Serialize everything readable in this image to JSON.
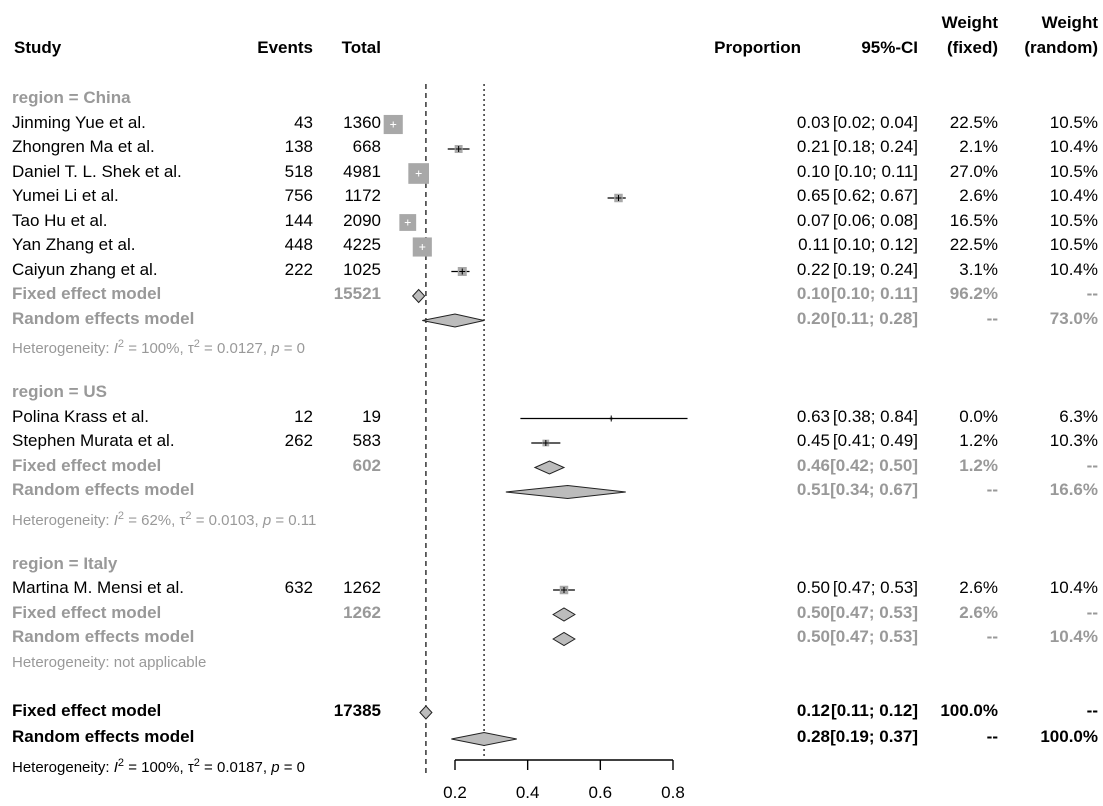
{
  "header": {
    "study": "Study",
    "events": "Events",
    "total": "Total",
    "proportion": "Proportion",
    "ci": "95%-CI",
    "weight_fixed_top": "Weight",
    "weight_fixed_bottom": "(fixed)",
    "weight_random_top": "Weight",
    "weight_random_bottom": "(random)"
  },
  "rows": [
    {
      "kind": "group",
      "label": "region = China"
    },
    {
      "kind": "study",
      "study": "Jinming Yue et al.",
      "events": "43",
      "total": "1360",
      "prop": "0.03",
      "ci": "[0.02; 0.04]",
      "wf": "22.5%",
      "wr": "10.5%",
      "est": 0.03,
      "lo": 0.02,
      "hi": 0.04,
      "w": 22.5
    },
    {
      "kind": "study",
      "study": "Zhongren Ma et al.",
      "events": "138",
      "total": "668",
      "prop": "0.21",
      "ci": "[0.18; 0.24]",
      "wf": "2.1%",
      "wr": "10.4%",
      "est": 0.21,
      "lo": 0.18,
      "hi": 0.24,
      "w": 2.1
    },
    {
      "kind": "study",
      "study": "Daniel T. L. Shek et al.",
      "events": "518",
      "total": "4981",
      "prop": "0.10",
      "ci": "[0.10; 0.11]",
      "wf": "27.0%",
      "wr": "10.5%",
      "est": 0.1,
      "lo": 0.1,
      "hi": 0.11,
      "w": 27.0
    },
    {
      "kind": "study",
      "study": "Yumei Li et al.",
      "events": "756",
      "total": "1172",
      "prop": "0.65",
      "ci": "[0.62; 0.67]",
      "wf": "2.6%",
      "wr": "10.4%",
      "est": 0.65,
      "lo": 0.62,
      "hi": 0.67,
      "w": 2.6
    },
    {
      "kind": "study",
      "study": "Tao Hu et al.",
      "events": "144",
      "total": "2090",
      "prop": "0.07",
      "ci": "[0.06; 0.08]",
      "wf": "16.5%",
      "wr": "10.5%",
      "est": 0.07,
      "lo": 0.06,
      "hi": 0.08,
      "w": 16.5
    },
    {
      "kind": "study",
      "study": "Yan Zhang et al.",
      "events": "448",
      "total": "4225",
      "prop": "0.11",
      "ci": "[0.10; 0.12]",
      "wf": "22.5%",
      "wr": "10.5%",
      "est": 0.11,
      "lo": 0.1,
      "hi": 0.12,
      "w": 22.5
    },
    {
      "kind": "study",
      "study": "Caiyun zhang et al.",
      "events": "222",
      "total": "1025",
      "prop": "0.22",
      "ci": "[0.19; 0.24]",
      "wf": "3.1%",
      "wr": "10.4%",
      "est": 0.22,
      "lo": 0.19,
      "hi": 0.24,
      "w": 3.1
    },
    {
      "kind": "fixed",
      "study": "Fixed effect model",
      "events": "",
      "total": "15521",
      "prop": "0.10",
      "ci": "[0.10; 0.11]",
      "wf": "96.2%",
      "wr": "--",
      "est": 0.1,
      "lo": 0.1,
      "hi": 0.11
    },
    {
      "kind": "random",
      "study": "Random effects model",
      "events": "",
      "total": "",
      "prop": "0.20",
      "ci": "[0.11; 0.28]",
      "wf": "--",
      "wr": "73.0%",
      "est": 0.2,
      "lo": 0.11,
      "hi": 0.28
    },
    {
      "kind": "het",
      "pre": "Heterogeneity: ",
      "I": "I",
      "mid": " = 100%, ",
      "tau": "τ",
      "post": " = 0.0127, ",
      "p": "p",
      "pval": " = 0"
    },
    {
      "kind": "blank"
    },
    {
      "kind": "group",
      "label": "region = US"
    },
    {
      "kind": "study",
      "study": "Polina Krass et al.",
      "events": "12",
      "total": "19",
      "prop": "0.63",
      "ci": "[0.38; 0.84]",
      "wf": "0.0%",
      "wr": "6.3%",
      "est": 0.63,
      "lo": 0.38,
      "hi": 0.84,
      "w": 0.0
    },
    {
      "kind": "study",
      "study": "Stephen Murata et al.",
      "events": "262",
      "total": "583",
      "prop": "0.45",
      "ci": "[0.41; 0.49]",
      "wf": "1.2%",
      "wr": "10.3%",
      "est": 0.45,
      "lo": 0.41,
      "hi": 0.49,
      "w": 1.2
    },
    {
      "kind": "fixed",
      "study": "Fixed effect model",
      "events": "",
      "total": "602",
      "prop": "0.46",
      "ci": "[0.42; 0.50]",
      "wf": "1.2%",
      "wr": "--",
      "est": 0.46,
      "lo": 0.42,
      "hi": 0.5
    },
    {
      "kind": "random",
      "study": "Random effects model",
      "events": "",
      "total": "",
      "prop": "0.51",
      "ci": "[0.34; 0.67]",
      "wf": "--",
      "wr": "16.6%",
      "est": 0.51,
      "lo": 0.34,
      "hi": 0.67
    },
    {
      "kind": "het",
      "pre": "Heterogeneity: ",
      "I": "I",
      "mid": " = 62%, ",
      "tau": "τ",
      "post": " = 0.0103, ",
      "p": "p",
      "pval": " = 0.11"
    },
    {
      "kind": "blank"
    },
    {
      "kind": "group",
      "label": "region = Italy"
    },
    {
      "kind": "study",
      "study": "Martina M. Mensi et al.",
      "events": "632",
      "total": "1262",
      "prop": "0.50",
      "ci": "[0.47; 0.53]",
      "wf": "2.6%",
      "wr": "10.4%",
      "est": 0.5,
      "lo": 0.47,
      "hi": 0.53,
      "w": 2.6
    },
    {
      "kind": "fixed",
      "study": "Fixed effect model",
      "events": "",
      "total": "1262",
      "prop": "0.50",
      "ci": "[0.47; 0.53]",
      "wf": "2.6%",
      "wr": "--",
      "est": 0.5,
      "lo": 0.47,
      "hi": 0.53
    },
    {
      "kind": "random",
      "study": "Random effects model",
      "events": "",
      "total": "",
      "prop": "0.50",
      "ci": "[0.47; 0.53]",
      "wf": "--",
      "wr": "10.4%",
      "est": 0.5,
      "lo": 0.47,
      "hi": 0.53
    },
    {
      "kind": "hettext",
      "text": "Heterogeneity: not applicable"
    },
    {
      "kind": "blank"
    },
    {
      "kind": "ofixed",
      "study": "Fixed effect model",
      "events": "",
      "total": "17385",
      "prop": "0.12",
      "ci": "[0.11; 0.12]",
      "wf": "100.0%",
      "wr": "--",
      "est": 0.12,
      "lo": 0.11,
      "hi": 0.12
    },
    {
      "kind": "orandom",
      "study": "Random effects model",
      "events": "",
      "total": "",
      "prop": "0.28",
      "ci": "[0.19; 0.37]",
      "wf": "--",
      "wr": "100.0%",
      "est": 0.28,
      "lo": 0.19,
      "hi": 0.37
    },
    {
      "kind": "ohet",
      "pre": "Heterogeneity: ",
      "I": "I",
      "mid": " = 100%, ",
      "tau": "τ",
      "post": " = 0.0187, ",
      "p": "p",
      "pval": " = 0"
    }
  ],
  "chart_data": {
    "type": "forest",
    "axis_ticks": [
      0.2,
      0.4,
      0.6,
      0.8
    ],
    "axis_tick_labels": [
      "0.2",
      "0.4",
      "0.6",
      "0.8"
    ],
    "xlim": [
      0,
      1
    ],
    "reference_lines": {
      "fixed_overall": 0.12,
      "random_overall": 0.28
    },
    "colors": {
      "box": "#a8a8a8",
      "diamond": "#bcbcbc",
      "subgroup_text": "#999999",
      "line": "#000000"
    }
  }
}
